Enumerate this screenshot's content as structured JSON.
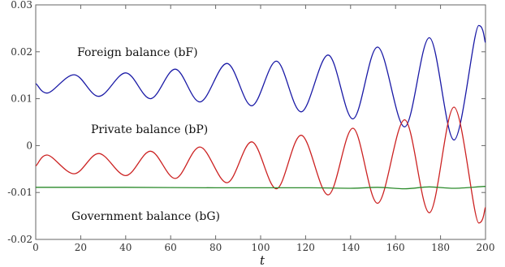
{
  "chart_data": {
    "type": "line",
    "title": "",
    "xlabel": "t",
    "ylabel": "",
    "xlim": [
      0,
      200
    ],
    "ylim": [
      -0.02,
      0.03
    ],
    "x_ticks": [
      0,
      20,
      40,
      60,
      80,
      100,
      120,
      140,
      160,
      180,
      200
    ],
    "x_tick_labels": [
      "0",
      "20",
      "40",
      "60",
      "80",
      "100",
      "120",
      "140",
      "160",
      "180",
      "200"
    ],
    "y_ticks": [
      -0.02,
      -0.01,
      0,
      0.01,
      0.02,
      0.03
    ],
    "y_tick_labels": [
      "-0.02",
      "-0.01",
      "0",
      "0.01",
      "0.02",
      "0.03"
    ],
    "grid": false,
    "series": [
      {
        "name": "Foreign balance (bF)",
        "color": "#1a1aa6",
        "x": [
          0,
          5,
          17,
          28,
          40,
          51,
          62,
          73,
          85,
          96,
          107,
          118,
          130,
          141,
          152,
          164,
          175,
          186,
          197,
          200
        ],
        "y": [
          0.0132,
          0.0112,
          0.0151,
          0.0105,
          0.0155,
          0.01,
          0.0163,
          0.0093,
          0.0175,
          0.0085,
          0.018,
          0.0072,
          0.0193,
          0.0057,
          0.021,
          0.004,
          0.023,
          0.0012,
          0.0256,
          0.022
        ]
      },
      {
        "name": "Private balance (bP)",
        "color": "#cc2222",
        "x": [
          0,
          5,
          17,
          28,
          40,
          51,
          62,
          73,
          85,
          96,
          107,
          118,
          130,
          141,
          152,
          164,
          175,
          186,
          197,
          200
        ],
        "y": [
          -0.0043,
          -0.002,
          -0.006,
          -0.0017,
          -0.0064,
          -0.0012,
          -0.007,
          -0.0003,
          -0.0079,
          0.0008,
          -0.0092,
          0.0022,
          -0.0105,
          0.0037,
          -0.0123,
          0.0055,
          -0.0143,
          0.0082,
          -0.0165,
          -0.0132
        ]
      },
      {
        "name": "Government balance (bG)",
        "color": "#2a8a2a",
        "x": [
          0,
          40,
          80,
          120,
          140,
          152,
          164,
          175,
          186,
          200
        ],
        "y": [
          -0.0089,
          -0.0089,
          -0.009,
          -0.009,
          -0.0091,
          -0.0089,
          -0.0092,
          -0.0088,
          -0.0091,
          -0.0087
        ]
      }
    ]
  }
}
